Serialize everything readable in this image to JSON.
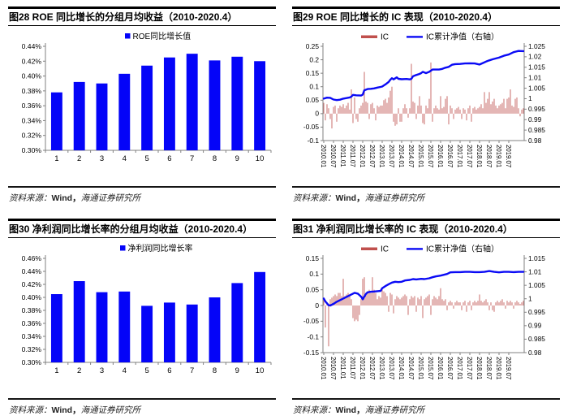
{
  "colors": {
    "bar_blue": "#0404F8",
    "line_blue": "#0A0AF5",
    "ic_bar_fill": "#CD7B79",
    "ic_legend_red": "#C0504D",
    "axis_gray": "#808080",
    "label_black": "#000000",
    "rule_black": "#000000"
  },
  "figures": [
    {
      "title": "图28  ROE 同比增长的分组月均收益（2010-2020.4）",
      "source_label": "资料来源：",
      "source_wind": "Wind，",
      "source_org": "海通证券研究所"
    },
    {
      "title": "图29  ROE 同比增长的 IC 表现（2010-2020.4）",
      "source_label": "资料来源：",
      "source_wind": "Wind，",
      "source_org": "海通证券研究所"
    },
    {
      "title": "图30 净利润同比增长率的分组月均收益（2010-2020.4）",
      "source_label": "资料来源：",
      "source_wind": "Wind，",
      "source_org": "海通证券研究所"
    },
    {
      "title": "图31 净利润同比增长率的 IC 表现（2010-2020.4）",
      "source_label": "资料来源：",
      "source_wind": "Wind，",
      "source_org": "海通证券研究所"
    }
  ],
  "chart_data": [
    {
      "type": "bar",
      "title": "ROE 同比增长的分组月均收益（2010-2020.4）",
      "legend": [
        "ROE同比增长值"
      ],
      "categories": [
        "1",
        "2",
        "3",
        "4",
        "5",
        "6",
        "7",
        "8",
        "9",
        "10"
      ],
      "values": [
        0.378,
        0.392,
        0.39,
        0.403,
        0.414,
        0.425,
        0.43,
        0.421,
        0.426,
        0.42
      ],
      "xlabel": "",
      "ylabel": "",
      "unit": "%",
      "ylim": [
        0.3,
        0.44
      ],
      "ytick_step": 0.02,
      "grid": false,
      "legend_position": "top-center"
    },
    {
      "type": "combo_bar_line",
      "title": "ROE 同比增长的 IC 表现（2010-2020.4）",
      "legend": [
        "IC",
        "IC累计净值（右轴）"
      ],
      "x_range": [
        "2010.01",
        "2020.04"
      ],
      "x_tick_labels": [
        "2010.01",
        "2010.07",
        "2011.01",
        "2011.07",
        "2012.01",
        "2012.07",
        "2013.01",
        "2013.07",
        "2014.01",
        "2014.07",
        "2015.01",
        "2015.07",
        "2016.01",
        "2016.07",
        "2017.01",
        "2017.07",
        "2018.01",
        "2018.07",
        "2019.01",
        "2019.07"
      ],
      "x_tick_every": 6,
      "ylim_left": [
        -0.1,
        0.25
      ],
      "ytick_left": 0.05,
      "ylim_right": [
        0.98,
        1.025
      ],
      "ytick_right": 0.005,
      "grid": false,
      "bars": [
        0.04,
        -0.025,
        0.035,
        0.02,
        -0.02,
        -0.055,
        0.025,
        0.03,
        -0.03,
        0.02,
        0.03,
        0.025,
        0.035,
        0.02,
        0.03,
        0.04,
        0.015,
        0.09,
        -0.035,
        0.06,
        -0.02,
        -0.03,
        0.02,
        0.03,
        0.04,
        0.155,
        0.045,
        0.04,
        -0.02,
        0.035,
        0.04,
        0.02,
        -0.025,
        0.03,
        0.025,
        0.03,
        0.03,
        0.05,
        0.055,
        0.04,
        0.06,
        0.085,
        0.1,
        -0.03,
        -0.045,
        -0.04,
        0.02,
        -0.03,
        -0.03,
        0.02,
        0.035,
        0.02,
        -0.015,
        0.02,
        0.185,
        0.045,
        0.04,
        -0.02,
        0.03,
        0.065,
        0.03,
        -0.035,
        -0.04,
        0.03,
        0.02,
        0.055,
        0.19,
        -0.03,
        0.02,
        0.03,
        0.02,
        0.015,
        0.065,
        0.02,
        0.025,
        0.055,
        0.065,
        -0.04,
        0.03,
        0.02,
        -0.02,
        0.015,
        0.02,
        0.025,
        0.015,
        -0.02,
        0.02,
        0.015,
        -0.025,
        0.02,
        0.03,
        -0.03,
        0.02,
        0.025,
        0.015,
        0.02,
        0.025,
        0.035,
        0.02,
        0.08,
        0.04,
        0.055,
        0.08,
        0.035,
        0.045,
        0.055,
        0.03,
        0.02,
        0.03,
        0.035,
        0.04,
        0.055,
        0.02,
        0.055,
        0.06,
        0.09,
        0.03,
        0.025,
        0.055,
        0.06,
        0.02,
        -0.01,
        0.015,
        0.02
      ],
      "line_points": [
        [
          0,
          1.0
        ],
        [
          2,
          1.0005
        ],
        [
          4,
          1.0004
        ],
        [
          6,
          0.9996
        ],
        [
          8,
          0.9993
        ],
        [
          10,
          0.9995
        ],
        [
          12,
          1.0
        ],
        [
          14,
          1.0003
        ],
        [
          16,
          1.0006
        ],
        [
          17,
          1.001
        ],
        [
          18,
          1.0018
        ],
        [
          20,
          1.0016
        ],
        [
          23,
          1.0015
        ],
        [
          24,
          1.0019
        ],
        [
          25,
          1.004
        ],
        [
          27,
          1.0046
        ],
        [
          29,
          1.0047
        ],
        [
          31,
          1.0049
        ],
        [
          33,
          1.0053
        ],
        [
          35,
          1.0056
        ],
        [
          36,
          1.0058
        ],
        [
          38,
          1.0068
        ],
        [
          40,
          1.008
        ],
        [
          41,
          1.009
        ],
        [
          42,
          1.0098
        ],
        [
          43,
          1.0092
        ],
        [
          45,
          1.0102
        ],
        [
          46,
          1.0095
        ],
        [
          48,
          1.0093
        ],
        [
          51,
          1.0094
        ],
        [
          53,
          1.0092
        ],
        [
          54,
          1.0095
        ],
        [
          55,
          1.0107
        ],
        [
          57,
          1.0113
        ],
        [
          59,
          1.0118
        ],
        [
          60,
          1.0122
        ],
        [
          61,
          1.0128
        ],
        [
          63,
          1.0122
        ],
        [
          65,
          1.0128
        ],
        [
          67,
          1.0139
        ],
        [
          69,
          1.0139
        ],
        [
          71,
          1.0139
        ],
        [
          73,
          1.0142
        ],
        [
          75,
          1.0148
        ],
        [
          77,
          1.0152
        ],
        [
          79,
          1.0162
        ],
        [
          81,
          1.0165
        ],
        [
          84,
          1.0166
        ],
        [
          87,
          1.0168
        ],
        [
          90,
          1.0169
        ],
        [
          93,
          1.0168
        ],
        [
          96,
          1.0163
        ],
        [
          98,
          1.017
        ],
        [
          100,
          1.0177
        ],
        [
          102,
          1.0183
        ],
        [
          104,
          1.0188
        ],
        [
          108,
          1.0196
        ],
        [
          111,
          1.0205
        ],
        [
          114,
          1.0211
        ],
        [
          117,
          1.0222
        ],
        [
          120,
          1.0228
        ],
        [
          123,
          1.0227
        ]
      ]
    },
    {
      "type": "bar",
      "title": "净利润同比增长率的分组月均收益（2010-2020.4）",
      "legend": [
        "净利润同比增长率"
      ],
      "categories": [
        "1",
        "2",
        "3",
        "4",
        "5",
        "6",
        "7",
        "8",
        "9",
        "10"
      ],
      "values": [
        0.405,
        0.425,
        0.408,
        0.409,
        0.387,
        0.392,
        0.389,
        0.4,
        0.422,
        0.439
      ],
      "xlabel": "",
      "ylabel": "",
      "unit": "%",
      "ylim": [
        0.3,
        0.46
      ],
      "ytick_step": 0.02,
      "grid": false,
      "legend_position": "top-center"
    },
    {
      "type": "combo_bar_line",
      "title": "净利润同比增长率的 IC 表现（2010-2020.4）",
      "legend": [
        "IC",
        "IC累计净值（右轴）"
      ],
      "x_range": [
        "2010.01",
        "2020.04"
      ],
      "x_tick_labels": [
        "2010.01",
        "2010.07",
        "2011.01",
        "2011.07",
        "2012.01",
        "2012.07",
        "2013.01",
        "2013.07",
        "2014.01",
        "2014.07",
        "2015.01",
        "2015.07",
        "2016.01",
        "2016.07",
        "2017.01",
        "2017.07",
        "2018.01",
        "2018.07",
        "2019.01",
        "2019.07"
      ],
      "x_tick_every": 6,
      "ylim_left": [
        -0.15,
        0.15
      ],
      "ytick_left": 0.05,
      "ylim_right": [
        0.98,
        1.015
      ],
      "ytick_right": 0.005,
      "grid": false,
      "bars": [
        0.02,
        -0.07,
        0.01,
        -0.13,
        0.02,
        0.025,
        0.03,
        0.035,
        0.03,
        0.04,
        0.04,
        0.03,
        0.085,
        0.03,
        0.035,
        0.04,
        0.03,
        0.02,
        -0.04,
        -0.05,
        -0.045,
        -0.05,
        -0.03,
        0.02,
        0.085,
        0.09,
        0.04,
        0.045,
        0.05,
        0.04,
        0.09,
        0.05,
        0.04,
        0.02,
        0.03,
        0.025,
        0.05,
        0.045,
        0.04,
        0.03,
        -0.02,
        0.04,
        0.035,
        -0.025,
        0.02,
        0.03,
        0.025,
        0.02,
        0.025,
        0.03,
        0.035,
        0.03,
        -0.03,
        0.02,
        0.03,
        0.025,
        0.03,
        -0.02,
        0.025,
        0.02,
        0.03,
        -0.04,
        0.02,
        0.025,
        0.03,
        0.035,
        -0.03,
        0.02,
        0.03,
        0.025,
        0.02,
        0.03,
        0.055,
        0.02,
        0.015,
        0.02,
        -0.015,
        0.01,
        0.015,
        0.01,
        -0.01,
        0.01,
        0.015,
        0.01,
        0.01,
        -0.015,
        0.01,
        0.015,
        -0.02,
        0.01,
        0.015,
        -0.015,
        0.01,
        0.015,
        0.01,
        0.015,
        0.035,
        0.015,
        0.01,
        0.015,
        0.02,
        0.01,
        -0.015,
        0.01,
        -0.015,
        -0.02,
        0.01,
        0.015,
        0.01,
        0.015,
        0.02,
        0.01,
        -0.01,
        0.015,
        0.01,
        0.015,
        0.01,
        -0.01,
        0.01,
        0.015,
        0.01,
        0.005,
        0.01,
        0.015
      ],
      "line_points": [
        [
          0,
          1.0001
        ],
        [
          1,
          0.999
        ],
        [
          3,
          0.9976
        ],
        [
          4,
          0.9975
        ],
        [
          6,
          0.9981
        ],
        [
          8,
          0.9989
        ],
        [
          11,
          0.9998
        ],
        [
          13,
          1.0004
        ],
        [
          15,
          1.001
        ],
        [
          17,
          1.0016
        ],
        [
          19,
          1.0022
        ],
        [
          21,
          1.0019
        ],
        [
          23,
          1.0008
        ],
        [
          24,
          0.9998
        ],
        [
          26,
          1.0018
        ],
        [
          27,
          1.0024
        ],
        [
          29,
          1.0026
        ],
        [
          31,
          1.0027
        ],
        [
          33,
          1.0028
        ],
        [
          35,
          1.0029
        ],
        [
          36,
          1.0039
        ],
        [
          38,
          1.0047
        ],
        [
          40,
          1.0054
        ],
        [
          42,
          1.006
        ],
        [
          44,
          1.0063
        ],
        [
          46,
          1.0062
        ],
        [
          48,
          1.0063
        ],
        [
          50,
          1.0068
        ],
        [
          53,
          1.007
        ],
        [
          55,
          1.0073
        ],
        [
          57,
          1.0072
        ],
        [
          60,
          1.0074
        ],
        [
          62,
          1.0073
        ],
        [
          65,
          1.0076
        ],
        [
          67,
          1.008
        ],
        [
          69,
          1.0083
        ],
        [
          72,
          1.0086
        ],
        [
          74,
          1.0089
        ],
        [
          76,
          1.0092
        ],
        [
          78,
          1.0098
        ],
        [
          81,
          1.0099
        ],
        [
          84,
          1.0099
        ],
        [
          87,
          1.01
        ],
        [
          90,
          1.01
        ],
        [
          93,
          1.0099
        ],
        [
          96,
          1.0099
        ],
        [
          99,
          1.01
        ],
        [
          102,
          1.0103
        ],
        [
          105,
          1.01
        ],
        [
          108,
          1.0098
        ],
        [
          111,
          1.01
        ],
        [
          114,
          1.01
        ],
        [
          117,
          1.0099
        ],
        [
          120,
          1.01
        ],
        [
          123,
          1.01
        ]
      ]
    }
  ]
}
